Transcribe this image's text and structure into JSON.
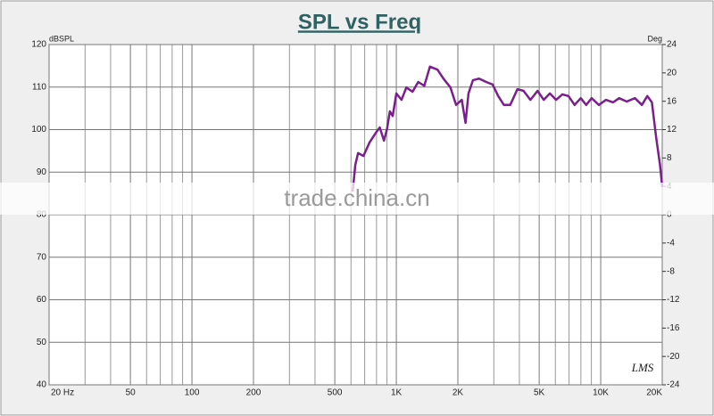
{
  "chart_data": {
    "type": "line",
    "title": "SPL vs Freq",
    "y_label": "dBSPL",
    "y2_label": "Deg",
    "log_x": true,
    "grid": true,
    "xlim": [
      20,
      20000
    ],
    "xticks": [
      {
        "value": 20,
        "label": "20 Hz"
      },
      50,
      100,
      200,
      500,
      {
        "value": 1000,
        "label": "1K"
      },
      {
        "value": 2000,
        "label": "2K"
      },
      {
        "value": 5000,
        "label": "5K"
      },
      {
        "value": 10000,
        "label": "10K"
      },
      {
        "value": 20000,
        "label": "20K"
      }
    ],
    "x_minor_gridlines": [
      30,
      40,
      60,
      70,
      80,
      90,
      300,
      400,
      600,
      700,
      800,
      900,
      3000,
      4000,
      6000,
      7000,
      8000,
      9000
    ],
    "ylim": [
      40,
      120
    ],
    "yticks": [
      40,
      50,
      60,
      70,
      80,
      90,
      100,
      110,
      120
    ],
    "y2lim": [
      -24,
      24
    ],
    "y2ticks": [
      -24,
      -20,
      -16,
      -12,
      -8,
      -4,
      0,
      4,
      8,
      12,
      16,
      20,
      24
    ],
    "x": [
      611,
      630,
      650,
      690,
      740,
      800,
      830,
      870,
      900,
      930,
      960,
      1000,
      1060,
      1120,
      1200,
      1280,
      1370,
      1460,
      1590,
      1700,
      1840,
      1960,
      2090,
      2180,
      2255,
      2370,
      2540,
      2750,
      2960,
      3150,
      3360,
      3610,
      3910,
      4190,
      4530,
      4910,
      5260,
      5640,
      6050,
      6490,
      6950,
      7450,
      7990,
      8490,
      9030,
      9790,
      10600,
      11500,
      12300,
      13400,
      14700,
      15900,
      16900,
      17800,
      18700,
      19500,
      20000
    ],
    "series": [
      {
        "color": "#7b1f8c",
        "values": [
          85.4,
          91.7,
          94.5,
          93.8,
          97,
          99.5,
          100.5,
          97.4,
          100.1,
          104.3,
          103.2,
          108.5,
          107,
          109.9,
          108.9,
          111.2,
          110.3,
          114.8,
          114.1,
          112,
          109.9,
          105.8,
          107,
          101.6,
          108.5,
          111.6,
          112,
          111.2,
          110.6,
          107.9,
          105.8,
          105.8,
          109.5,
          109.1,
          107,
          109.1,
          107,
          108.5,
          107,
          108.3,
          107.9,
          105.8,
          107.4,
          105.8,
          107.4,
          105.8,
          107,
          106.4,
          107.4,
          106.6,
          107.4,
          105.8,
          107.9,
          106.4,
          98,
          91.7,
          86.5
        ]
      }
    ],
    "logo": "LMS",
    "watermark": "trade.china.cn"
  }
}
